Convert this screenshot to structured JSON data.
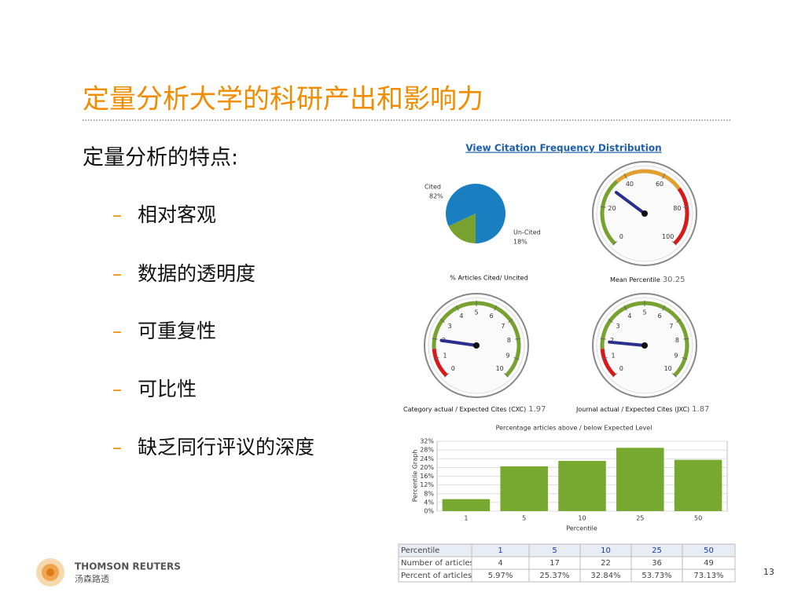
{
  "title": "定量分析大学的科研产出和影响力",
  "heading": "定量分析的特点:",
  "bullet_marker": "–",
  "bullets": [
    "相对客观",
    "数据的透明度",
    "可重复性",
    "可比性",
    "缺乏同行评议的深度"
  ],
  "link": "View Citation Frequency Distribution",
  "pie": {
    "type": "pie",
    "caption": "% Articles Cited/ Uncited",
    "categories": [
      "Cited",
      "Un-Cited"
    ],
    "values": [
      82,
      18
    ],
    "value_labels": [
      "82%",
      "18%"
    ],
    "colors": [
      "#1a7fc1",
      "#78a22f"
    ]
  },
  "gauges": [
    {
      "type": "gauge",
      "caption": "Mean Percentile",
      "value": 30.25,
      "range": [
        0,
        100
      ],
      "ticks": [
        0,
        20,
        40,
        60,
        80,
        100
      ]
    },
    {
      "type": "gauge",
      "caption": "Category actual / Expected Cites (CXC)",
      "value": 1.97,
      "range": [
        0,
        10
      ],
      "ticks": [
        0,
        1,
        2,
        3,
        4,
        5,
        6,
        7,
        8,
        9,
        10
      ]
    },
    {
      "type": "gauge",
      "caption": "Journal actual / Expected Cites (JXC)",
      "value": 1.87,
      "range": [
        0,
        10
      ],
      "ticks": [
        0,
        1,
        2,
        3,
        4,
        5,
        6,
        7,
        8,
        9,
        10
      ]
    }
  ],
  "chart_data": {
    "type": "bar",
    "title": "Percentage articles above / below Expected Level",
    "y_label": "Percentile Graph",
    "x_label": "Percentile",
    "categories": [
      "1",
      "5",
      "10",
      "25",
      "50"
    ],
    "values": [
      5.5,
      20.5,
      23,
      29,
      23.5
    ],
    "color": "#77a830",
    "ylim": [
      0,
      32
    ],
    "yticks": [
      {
        "value": 0,
        "label": "0%"
      },
      {
        "value": 4,
        "label": "4%"
      },
      {
        "value": 8,
        "label": "8%"
      },
      {
        "value": 12,
        "label": "12%"
      },
      {
        "value": 16,
        "label": "16%"
      },
      {
        "value": 20,
        "label": "20%"
      },
      {
        "value": 24,
        "label": "24%"
      },
      {
        "value": 28,
        "label": "28%"
      },
      {
        "value": 32,
        "label": "32%"
      }
    ],
    "grid": true
  },
  "table": {
    "rows": [
      [
        "Percentile",
        "1",
        "5",
        "10",
        "25",
        "50"
      ],
      [
        "Number of articles",
        "4",
        "17",
        "22",
        "36",
        "49"
      ],
      [
        "Percent of articles",
        "5.97%",
        "25.37%",
        "32.84%",
        "53.73%",
        "73.13%"
      ]
    ]
  },
  "logo": {
    "name": "THOMSON REUTERS",
    "name_cn": "汤森路透"
  },
  "page_number": "13"
}
